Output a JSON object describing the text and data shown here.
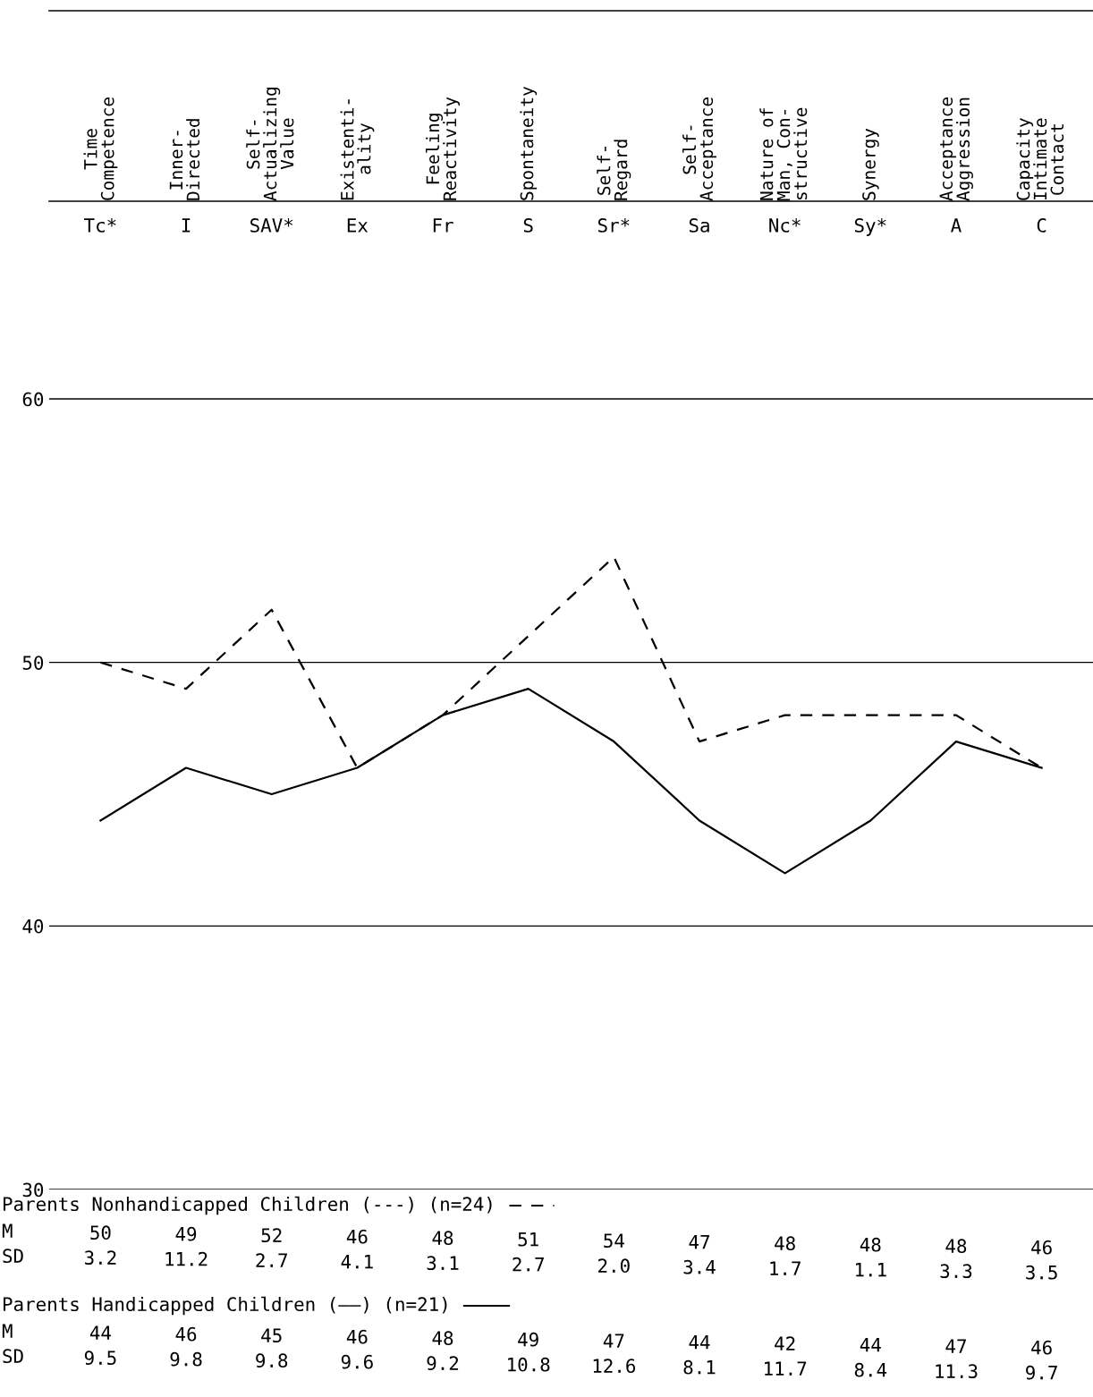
{
  "chart_data": {
    "type": "line",
    "categories": [
      "Tc*",
      "I",
      "SAV*",
      "Ex",
      "Fr",
      "S",
      "Sr*",
      "Sa",
      "Nc*",
      "Sy*",
      "A",
      "C"
    ],
    "series": [
      {
        "name": "Parents Nonhandicapped Children (---) (n=24)",
        "color": "#000000",
        "line_style": "dashed",
        "values": [
          50,
          49,
          52,
          46,
          48,
          51,
          54,
          47,
          48,
          48,
          48,
          46
        ]
      },
      {
        "name": "Parents Handicapped Children (——) (n=21)",
        "color": "#000000",
        "line_style": "solid",
        "values": [
          44,
          46,
          45,
          46,
          48,
          49,
          47,
          44,
          42,
          44,
          47,
          46
        ]
      }
    ],
    "ylim": [
      30,
      67.5
    ],
    "yticks": [
      30,
      40,
      50,
      60
    ],
    "grid": "y",
    "marker": "none",
    "legend": "bottom",
    "annotations": [
      "Time\nCompetence",
      "Inner-\nDirected",
      "Self-\nActualizing\nValue",
      "Existenti-\nality",
      "Feeling\nReactivity",
      "Spontaneity",
      "Self-\nRegard",
      "Self-\nAcceptance",
      "Nature of\nMan, Con-\nstructive",
      "Synergy",
      "Acceptance\nAggression",
      "Capacity\nIntimate\nContact",
      "M",
      "SD",
      "M",
      "SD",
      "50",
      "49",
      "52",
      "46",
      "48",
      "51",
      "54",
      "47",
      "48",
      "48",
      "48",
      "46",
      "3.2",
      "11.2",
      "2.7",
      "4.1",
      "3.1",
      "2.7",
      "2.0",
      "3.4",
      "1.7",
      "1.1",
      "3.3",
      "3.5",
      "44",
      "46",
      "45",
      "46",
      "48",
      "49",
      "47",
      "44",
      "42",
      "44",
      "47",
      "46",
      "9.5",
      "9.8",
      "9.8",
      "9.6",
      "9.2",
      "10.8",
      "12.6",
      "8.1",
      "11.7",
      "8.4",
      "11.3",
      "9.7"
    ]
  }
}
